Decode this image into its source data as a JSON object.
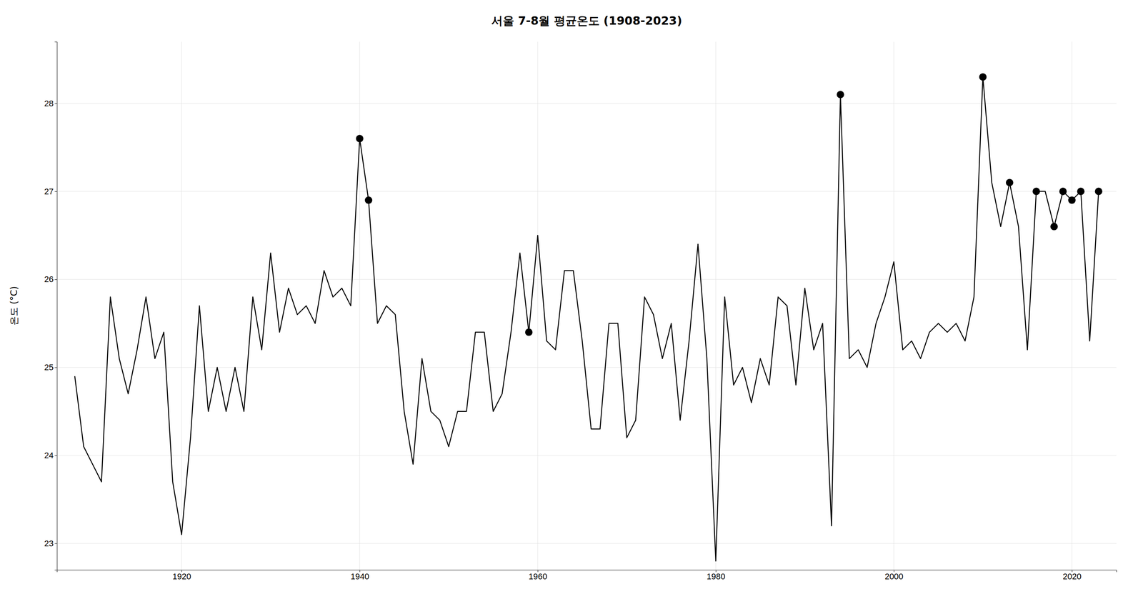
{
  "chart_data": {
    "type": "line",
    "title": "서울 7-8월 평균온도 (1908-2023)",
    "ylabel": "온도 (°C)",
    "x": [
      1908,
      1909,
      1910,
      1911,
      1912,
      1913,
      1914,
      1915,
      1916,
      1917,
      1918,
      1919,
      1920,
      1921,
      1922,
      1923,
      1924,
      1925,
      1926,
      1927,
      1928,
      1929,
      1930,
      1931,
      1932,
      1933,
      1934,
      1935,
      1936,
      1937,
      1938,
      1939,
      1940,
      1941,
      1942,
      1943,
      1944,
      1945,
      1946,
      1947,
      1948,
      1949,
      1950,
      1951,
      1952,
      1953,
      1954,
      1955,
      1956,
      1957,
      1958,
      1959,
      1960,
      1961,
      1962,
      1963,
      1964,
      1965,
      1966,
      1967,
      1968,
      1969,
      1970,
      1971,
      1972,
      1973,
      1974,
      1975,
      1976,
      1977,
      1978,
      1979,
      1980,
      1981,
      1982,
      1983,
      1984,
      1985,
      1986,
      1987,
      1988,
      1989,
      1990,
      1991,
      1992,
      1993,
      1994,
      1995,
      1996,
      1997,
      1998,
      1999,
      2000,
      2001,
      2002,
      2003,
      2004,
      2005,
      2006,
      2007,
      2008,
      2009,
      2010,
      2011,
      2012,
      2013,
      2014,
      2015,
      2016,
      2017,
      2018,
      2019,
      2020,
      2021,
      2022,
      2023
    ],
    "series": [
      {
        "color": "#000000",
        "values": [
          24.9,
          24.1,
          23.9,
          23.7,
          25.8,
          25.1,
          24.7,
          25.2,
          25.8,
          25.1,
          25.4,
          23.7,
          23.1,
          24.2,
          25.7,
          24.5,
          25.0,
          24.5,
          25.0,
          24.5,
          25.8,
          25.2,
          26.3,
          25.4,
          25.9,
          25.6,
          25.7,
          25.5,
          26.1,
          25.8,
          25.9,
          25.7,
          27.6,
          26.9,
          25.5,
          25.7,
          25.6,
          24.5,
          23.9,
          25.1,
          24.5,
          24.4,
          24.1,
          24.5,
          24.5,
          25.4,
          25.4,
          24.5,
          24.7,
          25.4,
          26.3,
          25.4,
          26.5,
          25.3,
          25.2,
          26.1,
          26.1,
          25.3,
          24.3,
          24.3,
          25.5,
          25.5,
          24.2,
          24.4,
          25.8,
          25.6,
          25.1,
          25.5,
          24.4,
          25.3,
          26.4,
          25.1,
          22.8,
          25.8,
          24.8,
          25.0,
          24.6,
          25.1,
          24.8,
          25.8,
          25.7,
          24.8,
          25.9,
          25.2,
          25.5,
          23.2,
          28.1,
          25.1,
          25.2,
          25.0,
          25.5,
          25.8,
          26.2,
          25.2,
          25.3,
          25.1,
          25.4,
          25.5,
          25.4,
          25.5,
          25.3,
          25.8,
          28.3,
          27.1,
          26.6,
          27.1,
          26.6,
          25.2,
          27.0,
          27.0,
          26.6,
          27.0,
          26.9,
          27.0,
          25.3,
          27.0
        ]
      },
      {
        "type": "scatter",
        "marker": "circle",
        "color": "#000000",
        "x": [
          1940,
          1941,
          1959,
          1994,
          2010,
          2013,
          2016,
          2018,
          2019,
          2020,
          2021,
          2023
        ],
        "values": [
          27.6,
          26.9,
          25.4,
          28.1,
          28.3,
          27.1,
          27.0,
          26.6,
          27.0,
          26.9,
          27.0,
          27.0
        ]
      }
    ],
    "xlim": [
      1906,
      2025
    ],
    "xticks": [
      1920,
      1940,
      1960,
      1980,
      2000,
      2020
    ],
    "ylim": [
      22.7,
      28.7
    ],
    "yticks": [
      23,
      24,
      25,
      26,
      27,
      28
    ],
    "grid": true
  }
}
